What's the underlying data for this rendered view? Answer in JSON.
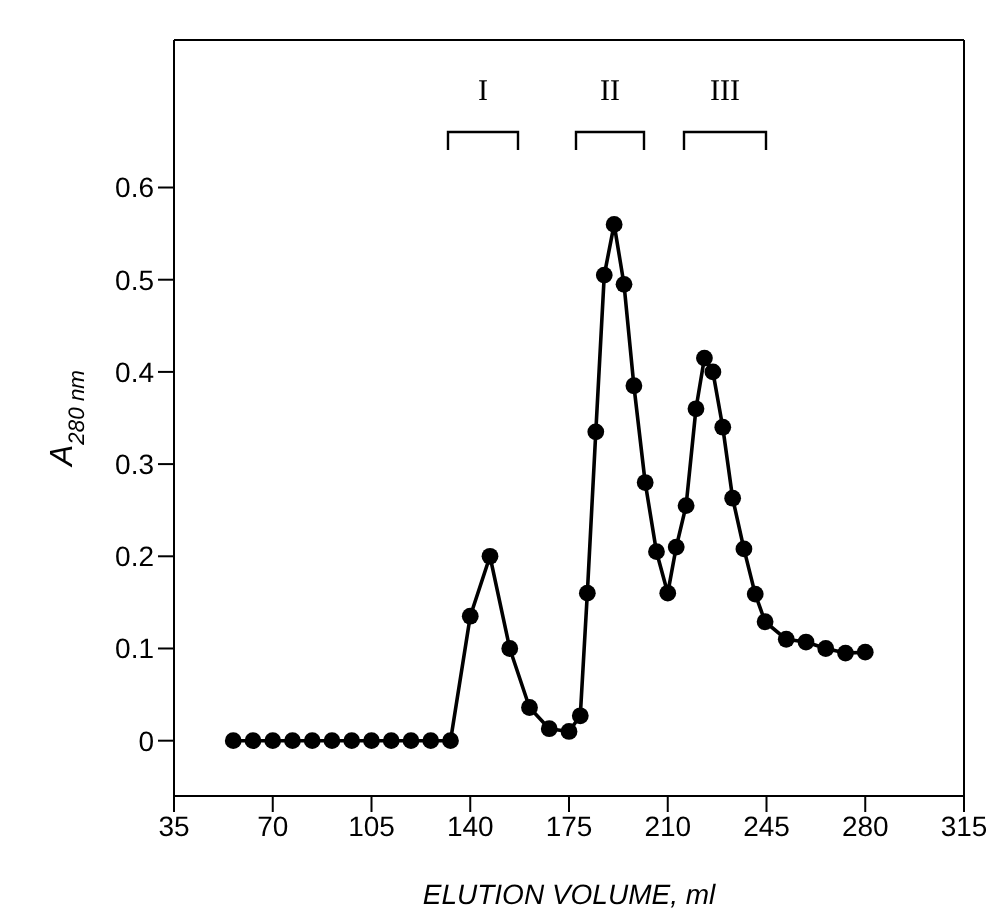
{
  "chart_data": {
    "type": "line",
    "xlabel": "ELUTION VOLUME, ml",
    "ylabel": "A$_{280 nm}$",
    "x": [
      56,
      63,
      70,
      77,
      84,
      91,
      98,
      105,
      112,
      119,
      126,
      133,
      140,
      147,
      154,
      161,
      168,
      175,
      179,
      181.5,
      184.5,
      187.5,
      191,
      194.5,
      198,
      202,
      206,
      210,
      213,
      216.5,
      220,
      223,
      226,
      229.5,
      233,
      237,
      241,
      244.5,
      252,
      259,
      266,
      273,
      280
    ],
    "series": [
      {
        "color": "#000000",
        "values": [
          0,
          0,
          0,
          0,
          0,
          0,
          0,
          0,
          0,
          0,
          0,
          0,
          0.135,
          0.2,
          0.1,
          0.036,
          0.013,
          0.01,
          0.027,
          0.16,
          0.335,
          0.505,
          0.56,
          0.495,
          0.385,
          0.28,
          0.205,
          0.16,
          0.21,
          0.255,
          0.36,
          0.415,
          0.4,
          0.34,
          0.263,
          0.208,
          0.159,
          0.129,
          0.11,
          0.107,
          0.1,
          0.095,
          0.096
        ]
      }
    ],
    "xlim": [
      35,
      315
    ],
    "xticks": [
      35,
      70,
      105,
      140,
      175,
      210,
      245,
      280,
      315
    ],
    "ylim": [
      -0.06,
      0.76
    ],
    "yticks": [
      0,
      0.1,
      0.2,
      0.3,
      0.4,
      0.5,
      0.6
    ],
    "annotations": [
      "I",
      "II",
      "III"
    ],
    "grid": false,
    "marker": "circle",
    "line_style": "solid"
  }
}
